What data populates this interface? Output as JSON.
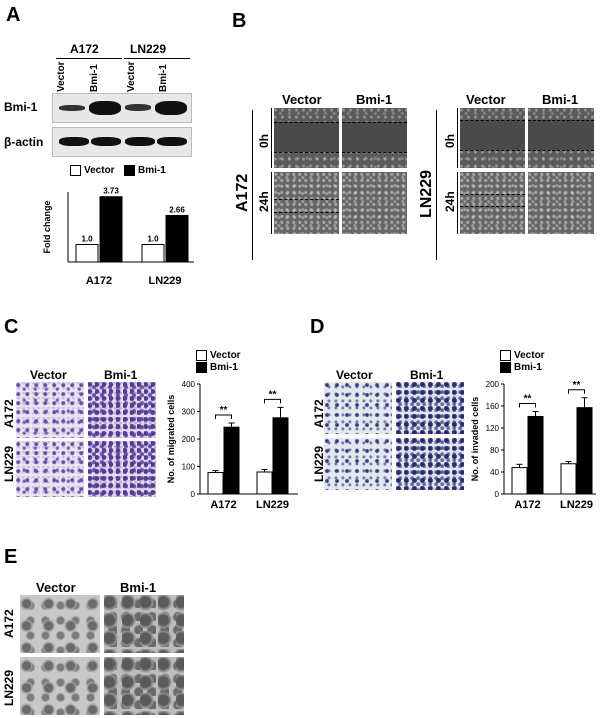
{
  "panels": {
    "A": {
      "letter": "A",
      "groups": [
        "A172",
        "LN229"
      ],
      "lanes": [
        "Vector",
        "Bmi-1",
        "Vector",
        "Bmi-1"
      ],
      "rows": [
        "Bmi-1",
        "β-actin"
      ],
      "legend": [
        "Vector",
        "Bmi-1"
      ],
      "ylabel": "Fold change"
    },
    "B": {
      "letter": "B",
      "cols": [
        "Vector",
        "Bmi-1"
      ],
      "lines": [
        "A172",
        "LN229"
      ],
      "times": [
        "0h",
        "24h"
      ]
    },
    "C": {
      "letter": "C",
      "cols": [
        "Vector",
        "Bmi-1"
      ],
      "rows": [
        "A172",
        "LN229"
      ],
      "legend": [
        "Vector",
        "Bmi-1"
      ],
      "ylabel": "No. of migrated cells"
    },
    "D": {
      "letter": "D",
      "cols": [
        "Vector",
        "Bmi-1"
      ],
      "rows": [
        "A172",
        "LN229"
      ],
      "legend": [
        "Vector",
        "Bmi-1"
      ],
      "ylabel": "No. of invaded cells"
    },
    "E": {
      "letter": "E",
      "cols": [
        "Vector",
        "Bmi-1"
      ],
      "rows": [
        "A172",
        "LN229"
      ]
    }
  },
  "colors": {
    "vector": "#ffffff",
    "bmi1": "#000000"
  },
  "chart_data": [
    {
      "id": "fold",
      "type": "bar",
      "categories": [
        "A172",
        "LN229"
      ],
      "series": [
        {
          "name": "Vector",
          "values": [
            1.0,
            1.0
          ]
        },
        {
          "name": "Bmi-1",
          "values": [
            3.73,
            2.66
          ]
        }
      ],
      "data_labels": [
        [
          "1.0",
          "3.73"
        ],
        [
          "1.0",
          "2.66"
        ]
      ],
      "ylabel": "Fold change",
      "ylim": [
        0,
        4
      ],
      "legend": "top"
    },
    {
      "id": "migrated",
      "type": "bar",
      "categories": [
        "A172",
        "LN229"
      ],
      "series": [
        {
          "name": "Vector",
          "values": [
            78,
            80
          ],
          "errors": [
            7,
            9
          ]
        },
        {
          "name": "Bmi-1",
          "values": [
            243,
            277
          ],
          "errors": [
            15,
            38
          ]
        }
      ],
      "significance": [
        "**",
        "**"
      ],
      "ylabel": "No. of migrated cells",
      "ylim": [
        0,
        400
      ],
      "yticks": [
        0,
        100,
        200,
        300,
        400
      ],
      "legend": "top"
    },
    {
      "id": "invaded",
      "type": "bar",
      "categories": [
        "A172",
        "LN229"
      ],
      "series": [
        {
          "name": "Vector",
          "values": [
            48,
            55
          ],
          "errors": [
            6,
            4
          ]
        },
        {
          "name": "Bmi-1",
          "values": [
            141,
            157
          ],
          "errors": [
            9,
            18
          ]
        }
      ],
      "significance": [
        "**",
        "**"
      ],
      "ylabel": "No. of invaded cells",
      "ylim": [
        0,
        200
      ],
      "yticks": [
        0,
        40,
        80,
        120,
        160,
        200
      ],
      "legend": "top"
    }
  ]
}
